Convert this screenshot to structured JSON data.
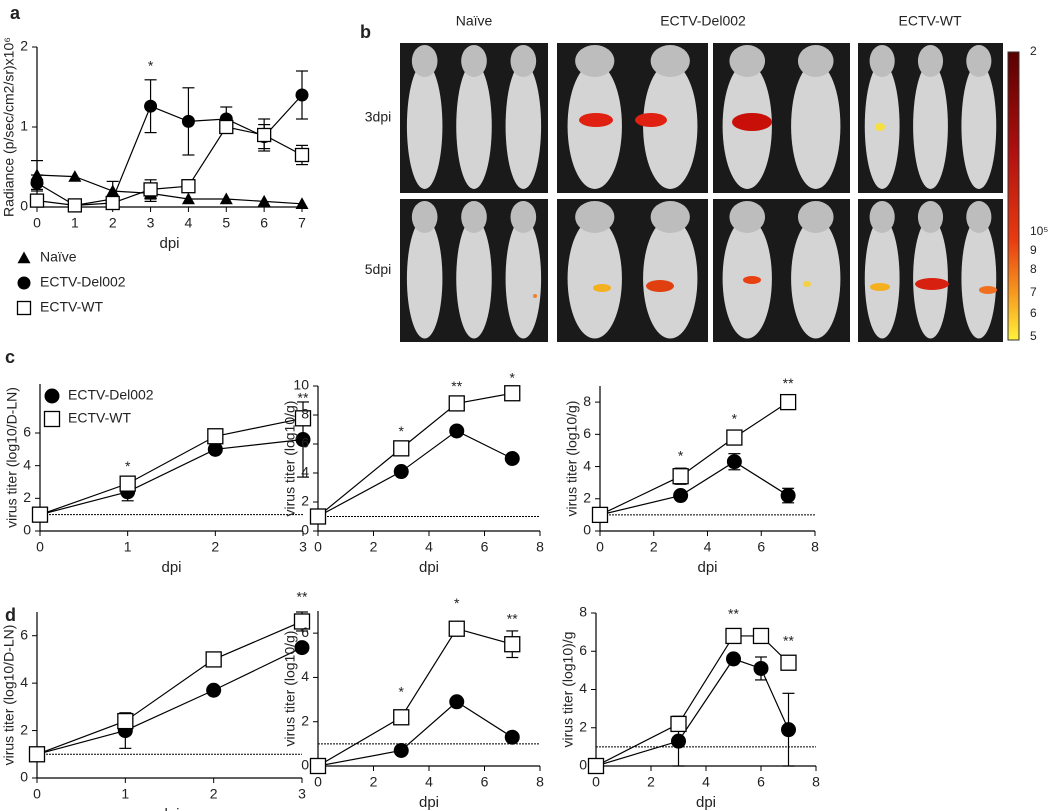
{
  "chart_data": [
    {
      "type": "line",
      "panel_label": "a",
      "x": [
        0,
        1,
        2,
        3,
        4,
        5,
        6,
        7
      ],
      "xlim": [
        0,
        7
      ],
      "xticks": [
        0,
        1,
        2,
        3,
        4,
        5,
        6,
        7
      ],
      "ylim": [
        0,
        2
      ],
      "yticks": [
        0,
        1,
        2
      ],
      "x_label": "dpi",
      "y_label": "Radiance (p/sec/cm2/sr)x10⁶",
      "legend": "below",
      "series": [
        {
          "name": "Naïve",
          "marker": "triangle",
          "color": "#000000",
          "values": [
            0.4,
            0.38,
            0.2,
            0.17,
            0.1,
            0.1,
            0.07,
            0.04
          ],
          "errors": [
            0.18,
            null,
            0.12,
            0.1,
            null,
            null,
            null,
            null
          ]
        },
        {
          "name": "ECTV-Del002",
          "marker": "circle",
          "color": "#000000",
          "values": [
            0.3,
            0.02,
            0.1,
            1.26,
            1.07,
            1.1,
            0.88,
            1.4
          ],
          "errors": [
            0.1,
            null,
            null,
            0.33,
            0.42,
            0.15,
            0.15,
            0.3
          ]
        },
        {
          "name": "ECTV-WT",
          "marker": "square",
          "color": "#000000",
          "values": [
            0.08,
            0.02,
            0.05,
            0.22,
            0.26,
            1.0,
            0.9,
            0.65
          ],
          "errors": [
            null,
            null,
            null,
            0.12,
            null,
            0.05,
            0.2,
            0.12
          ]
        }
      ],
      "annotations": [
        {
          "x": 3,
          "y": 1.75,
          "text": "*"
        }
      ]
    },
    {
      "type": "line",
      "panel_label": "c",
      "x": [
        0,
        1,
        2,
        3
      ],
      "xlim": [
        0,
        3
      ],
      "xticks": [
        0,
        1,
        2,
        3
      ],
      "ylim": [
        0,
        9
      ],
      "yticks": [
        0,
        2,
        4,
        6
      ],
      "x_label": "dpi",
      "y_label": "virus titer (log10/D-LN)",
      "legend": "upper-left",
      "hline": 1,
      "series": [
        {
          "name": "ECTV-Del002",
          "marker": "circle",
          "color": "#000000",
          "values": [
            1,
            2.4,
            5,
            5.6
          ],
          "errors": [
            null,
            0.55,
            null,
            2.3
          ]
        },
        {
          "name": "ECTV-WT",
          "marker": "square",
          "color": "#000000",
          "values": [
            1,
            2.9,
            5.8,
            6.9
          ]
        }
      ],
      "annotations": [
        {
          "x": 1,
          "y": 3.9,
          "text": "*"
        },
        {
          "x": 3,
          "y": 8.1,
          "text": "**"
        }
      ]
    },
    {
      "type": "line",
      "x": [
        0,
        3,
        5,
        7
      ],
      "xlim": [
        0,
        8
      ],
      "xticks": [
        0,
        2,
        4,
        6,
        8
      ],
      "ylim": [
        0,
        10
      ],
      "yticks": [
        0,
        2,
        4,
        6,
        8,
        10
      ],
      "x_label": "dpi",
      "y_label": "virus titer (log10/g)",
      "hline": 1,
      "series": [
        {
          "color": "#000000",
          "marker": "circle",
          "values": [
            1,
            4.1,
            6.9,
            5
          ]
        },
        {
          "color": "#000000",
          "marker": "square",
          "values": [
            1,
            5.7,
            8.8,
            9.5
          ]
        }
      ],
      "annotations": [
        {
          "x": 3,
          "y": 6.8,
          "text": "*"
        },
        {
          "x": 5,
          "y": 9.9,
          "text": "**"
        },
        {
          "x": 7,
          "y": 10.5,
          "text": "*"
        }
      ]
    },
    {
      "type": "line",
      "x": [
        0,
        3,
        5,
        7
      ],
      "xlim": [
        0,
        8
      ],
      "xticks": [
        0,
        2,
        4,
        6,
        8
      ],
      "ylim": [
        0,
        9
      ],
      "yticks": [
        0,
        2,
        4,
        6,
        8
      ],
      "x_label": "dpi",
      "y_label": "virus titer (log10/g)",
      "hline": 1,
      "series": [
        {
          "color": "#000000",
          "marker": "circle",
          "values": [
            1,
            2.2,
            4.3,
            2.2
          ],
          "errors": [
            null,
            null,
            0.5,
            0.45
          ]
        },
        {
          "color": "#000000",
          "marker": "square",
          "values": [
            1,
            3.4,
            5.8,
            8
          ],
          "errors": [
            null,
            0.5,
            null,
            null
          ]
        }
      ],
      "annotations": [
        {
          "x": 3,
          "y": 4.6,
          "text": "*"
        },
        {
          "x": 5,
          "y": 6.9,
          "text": "*"
        },
        {
          "x": 7,
          "y": 9.1,
          "text": "**"
        }
      ]
    },
    {
      "type": "line",
      "panel_label": "d",
      "x": [
        0,
        1,
        2,
        3
      ],
      "xlim": [
        0,
        3
      ],
      "xticks": [
        0,
        1,
        2,
        3
      ],
      "ylim": [
        0,
        7
      ],
      "yticks": [
        0,
        2,
        4,
        6
      ],
      "x_label": "dpi",
      "y_label": "virus titer (log10/D-LN)",
      "hline": 1,
      "series": [
        {
          "color": "#000000",
          "marker": "circle",
          "values": [
            1,
            2,
            3.7,
            5.5
          ],
          "errors": [
            null,
            0.75,
            null,
            null
          ]
        },
        {
          "color": "#000000",
          "marker": "square",
          "values": [
            1,
            2.4,
            5,
            6.6
          ],
          "errors": [
            null,
            null,
            0.25,
            0.4
          ]
        }
      ],
      "annotations": [
        {
          "x": 3,
          "y": 7.6,
          "text": "**"
        }
      ]
    },
    {
      "type": "line",
      "x": [
        0,
        3,
        5,
        7
      ],
      "xlim": [
        0,
        8
      ],
      "xticks": [
        0,
        2,
        4,
        6,
        8
      ],
      "ylim": [
        0,
        7
      ],
      "yticks": [
        0,
        2,
        4,
        6
      ],
      "x_label": "dpi",
      "y_label": "virus titer (log10/g)",
      "hline": 1,
      "series": [
        {
          "color": "#000000",
          "marker": "circle",
          "values": [
            0,
            0.7,
            2.9,
            1.3
          ]
        },
        {
          "color": "#000000",
          "marker": "square",
          "values": [
            0,
            2.2,
            6.2,
            5.5
          ],
          "errors": [
            null,
            null,
            null,
            0.6
          ]
        }
      ],
      "annotations": [
        {
          "x": 3,
          "y": 3.3,
          "text": "*"
        },
        {
          "x": 5,
          "y": 7.3,
          "text": "*"
        },
        {
          "x": 7,
          "y": 6.6,
          "text": "**"
        }
      ]
    },
    {
      "type": "line",
      "x": [
        0,
        3,
        5,
        6,
        7
      ],
      "xlim": [
        0,
        8
      ],
      "xticks": [
        0,
        2,
        4,
        6,
        8
      ],
      "ylim": [
        0,
        8
      ],
      "yticks": [
        0,
        2,
        4,
        6,
        8
      ],
      "x_label": "dpi",
      "y_label": "virus titer (log10)/g",
      "hline": 1,
      "series": [
        {
          "color": "#000000",
          "marker": "circle",
          "values": [
            0,
            1.3,
            5.6,
            5.1,
            1.9
          ],
          "errors": [
            null,
            1.3,
            null,
            0.6,
            1.9
          ]
        },
        {
          "color": "#000000",
          "marker": "square",
          "values": [
            0,
            2.2,
            6.8,
            6.8,
            5.4
          ]
        }
      ],
      "annotations": [
        {
          "x": 5,
          "y": 7.9,
          "text": "**"
        },
        {
          "x": 7,
          "y": 6.5,
          "text": "**"
        }
      ]
    }
  ],
  "imaging": {
    "panel_label": "b",
    "columns": [
      "Naïve",
      "ECTV-Del002",
      "ECTV-WT"
    ],
    "rows": [
      "3dpi",
      "5dpi"
    ],
    "colorbar_labels": [
      "2",
      "10⁵",
      "9",
      "8",
      "7",
      "6",
      "5"
    ]
  }
}
